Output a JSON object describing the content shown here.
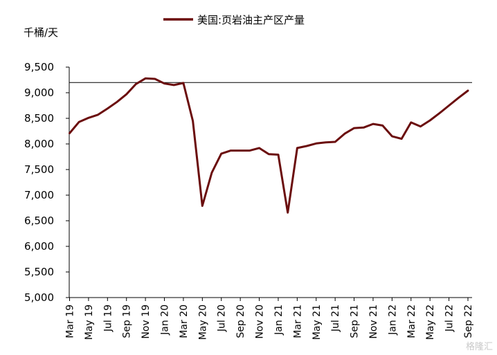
{
  "chart_data": {
    "type": "line",
    "title": "",
    "ylabel": "千桶/天",
    "xlabel": "",
    "ylim": [
      5000,
      9500
    ],
    "yticks": [
      5000,
      5500,
      6000,
      6500,
      7000,
      7500,
      8000,
      8500,
      9000,
      9500
    ],
    "ytick_labels": [
      "5,000",
      "5,500",
      "6,000",
      "6,500",
      "7,000",
      "7,500",
      "8,000",
      "8,500",
      "9,000",
      "9,500"
    ],
    "xtick_labels": [
      "Mar 19",
      "May 19",
      "Jul 19",
      "Sep 19",
      "Nov 19",
      "Jan 20",
      "Mar 20",
      "May 20",
      "Jul 20",
      "Sep 20",
      "Nov 20",
      "Jan 21",
      "Mar 21",
      "May 21",
      "Jul 21",
      "Sep 21",
      "Nov 21",
      "Jan 22",
      "Mar 22",
      "May 22",
      "Jul 22",
      "Sep 22"
    ],
    "legend_position": "top",
    "grid": false,
    "reference_line": 9200,
    "series": [
      {
        "name": "美国:页岩油主产区产量",
        "color": "#6b0d0d",
        "x": [
          "Mar 19",
          "Apr 19",
          "May 19",
          "Jun 19",
          "Jul 19",
          "Aug 19",
          "Sep 19",
          "Oct 19",
          "Nov 19",
          "Dec 19",
          "Jan 20",
          "Feb 20",
          "Mar 20",
          "Apr 20",
          "May 20",
          "Jun 20",
          "Jul 20",
          "Aug 20",
          "Sep 20",
          "Oct 20",
          "Nov 20",
          "Dec 20",
          "Jan 21",
          "Feb 21",
          "Mar 21",
          "Apr 21",
          "May 21",
          "Jun 21",
          "Jul 21",
          "Aug 21",
          "Sep 21",
          "Oct 21",
          "Nov 21",
          "Dec 21",
          "Jan 22",
          "Feb 22",
          "Mar 22",
          "Apr 22",
          "May 22",
          "Jun 22",
          "Jul 22",
          "Aug 22",
          "Sep 22"
        ],
        "values": [
          8210,
          8430,
          8510,
          8570,
          8690,
          8820,
          8970,
          9170,
          9280,
          9270,
          9180,
          9150,
          9190,
          8450,
          6790,
          7440,
          7810,
          7870,
          7870,
          7870,
          7920,
          7800,
          7790,
          6660,
          7920,
          7960,
          8010,
          8030,
          8040,
          8200,
          8310,
          8320,
          8390,
          8360,
          8150,
          8100,
          8420,
          8340,
          8460,
          8600,
          8750,
          8900,
          9040
        ]
      }
    ]
  },
  "watermark": "格隆汇"
}
